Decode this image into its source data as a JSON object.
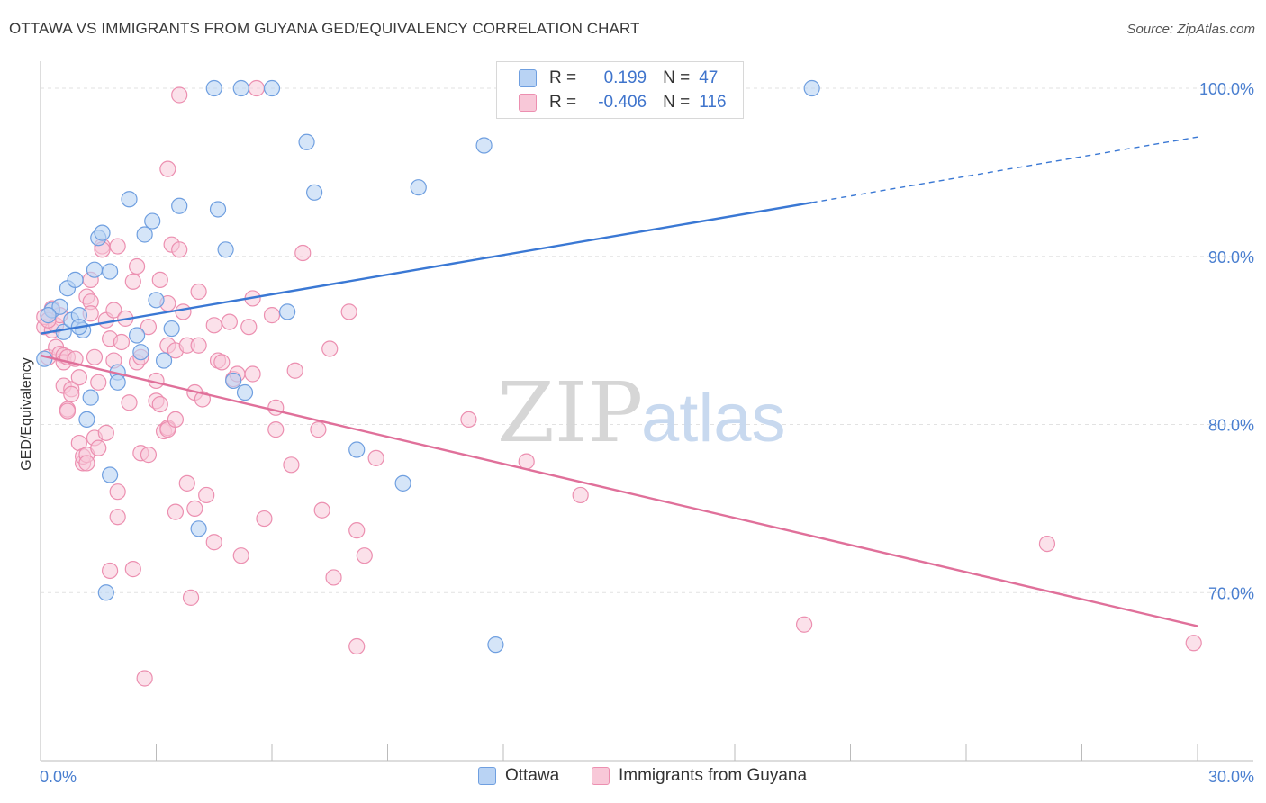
{
  "title": "OTTAWA VS IMMIGRANTS FROM GUYANA GED/EQUIVALENCY CORRELATION CHART",
  "source": "Source: ZipAtlas.com",
  "watermark": {
    "zip": "ZIP",
    "atlas": "atlas"
  },
  "legend": {
    "r_label": "R =",
    "n_label": "N =",
    "rows": [
      {
        "name": "Ottawa",
        "r": "0.199",
        "n": "47"
      },
      {
        "name": "Immigrants from Guyana",
        "r": "-0.406",
        "n": "116"
      }
    ]
  },
  "colors": {
    "ottawa_fill": "#b9d3f4",
    "ottawa_stroke": "#6f9fe0",
    "ottawa_line": "#3a78d4",
    "guyana_fill": "#f8c8d8",
    "guyana_stroke": "#ec8fb0",
    "guyana_line": "#e0709a",
    "grid": "#e2e2e2",
    "tick_text": "#4a7fd0"
  },
  "chart_data": {
    "type": "scatter",
    "title": "OTTAWA VS IMMIGRANTS FROM GUYANA GED/EQUIVALENCY CORRELATION CHART",
    "xlabel": "",
    "ylabel": "GED/Equivalency",
    "xlim": [
      0,
      30
    ],
    "ylim": [
      60,
      101.5
    ],
    "x_tick_labels": [
      "0.0%",
      "30.0%"
    ],
    "y_ticks": [
      70,
      80,
      90,
      100
    ],
    "y_tick_labels": [
      "70.0%",
      "80.0%",
      "90.0%",
      "100.0%"
    ],
    "grid": true,
    "series": [
      {
        "name": "Ottawa",
        "r": 0.199,
        "n": 47,
        "trend": {
          "x0": 0,
          "y0": 85.4,
          "x1": 20,
          "y1": 93.2,
          "dash_to_x": 30,
          "dash_to_y": 97.1
        },
        "points": [
          [
            0.1,
            83.9
          ],
          [
            0.3,
            86.8
          ],
          [
            0.5,
            87.0
          ],
          [
            0.6,
            85.5
          ],
          [
            0.7,
            88.1
          ],
          [
            0.8,
            86.2
          ],
          [
            0.9,
            88.6
          ],
          [
            1.0,
            86.5
          ],
          [
            1.1,
            85.6
          ],
          [
            1.2,
            80.3
          ],
          [
            1.3,
            81.6
          ],
          [
            1.4,
            89.2
          ],
          [
            1.5,
            91.1
          ],
          [
            1.6,
            91.4
          ],
          [
            1.8,
            89.1
          ],
          [
            1.8,
            77.0
          ],
          [
            1.7,
            70.0
          ],
          [
            2.0,
            83.1
          ],
          [
            2.0,
            82.5
          ],
          [
            2.3,
            93.4
          ],
          [
            2.5,
            85.3
          ],
          [
            2.6,
            84.3
          ],
          [
            2.7,
            91.3
          ],
          [
            2.9,
            92.1
          ],
          [
            3.0,
            87.4
          ],
          [
            3.2,
            83.8
          ],
          [
            3.4,
            85.7
          ],
          [
            3.6,
            93.0
          ],
          [
            4.1,
            73.8
          ],
          [
            4.5,
            100.0
          ],
          [
            4.6,
            92.8
          ],
          [
            4.8,
            90.4
          ],
          [
            5.0,
            82.6
          ],
          [
            5.3,
            81.9
          ],
          [
            5.2,
            100.0
          ],
          [
            6.0,
            100.0
          ],
          [
            6.4,
            86.7
          ],
          [
            6.9,
            96.8
          ],
          [
            7.1,
            93.8
          ],
          [
            8.2,
            78.5
          ],
          [
            9.4,
            76.5
          ],
          [
            9.8,
            94.1
          ],
          [
            11.5,
            96.6
          ],
          [
            11.8,
            66.9
          ],
          [
            20.0,
            100.0
          ],
          [
            0.2,
            86.5
          ],
          [
            1.0,
            85.8
          ]
        ]
      },
      {
        "name": "Immigrants from Guyana",
        "r": -0.406,
        "n": 116,
        "trend": {
          "x0": 0,
          "y0": 84.1,
          "x1": 30,
          "y1": 68.0
        },
        "points": [
          [
            0.1,
            85.8
          ],
          [
            0.1,
            86.4
          ],
          [
            0.2,
            84.0
          ],
          [
            0.3,
            86.9
          ],
          [
            0.3,
            85.6
          ],
          [
            0.4,
            85.9
          ],
          [
            0.4,
            84.6
          ],
          [
            0.5,
            86.5
          ],
          [
            0.5,
            84.2
          ],
          [
            0.6,
            84.1
          ],
          [
            0.6,
            82.3
          ],
          [
            0.6,
            83.7
          ],
          [
            0.7,
            84.0
          ],
          [
            0.7,
            80.9
          ],
          [
            0.7,
            80.8
          ],
          [
            0.8,
            82.1
          ],
          [
            0.8,
            81.8
          ],
          [
            0.9,
            83.9
          ],
          [
            1.0,
            78.9
          ],
          [
            1.0,
            82.8
          ],
          [
            1.1,
            77.7
          ],
          [
            1.1,
            78.1
          ],
          [
            1.2,
            78.2
          ],
          [
            1.2,
            87.6
          ],
          [
            1.2,
            77.7
          ],
          [
            1.3,
            87.3
          ],
          [
            1.3,
            88.6
          ],
          [
            1.3,
            86.6
          ],
          [
            1.4,
            84.0
          ],
          [
            1.4,
            79.2
          ],
          [
            1.5,
            82.5
          ],
          [
            1.5,
            78.6
          ],
          [
            1.6,
            90.6
          ],
          [
            1.6,
            90.4
          ],
          [
            1.7,
            86.2
          ],
          [
            1.7,
            79.5
          ],
          [
            1.8,
            85.1
          ],
          [
            1.8,
            71.3
          ],
          [
            1.9,
            86.8
          ],
          [
            1.9,
            83.8
          ],
          [
            2.0,
            90.6
          ],
          [
            2.0,
            74.5
          ],
          [
            2.0,
            76.0
          ],
          [
            2.1,
            84.9
          ],
          [
            2.2,
            86.3
          ],
          [
            2.3,
            81.3
          ],
          [
            2.4,
            88.5
          ],
          [
            2.4,
            71.4
          ],
          [
            2.5,
            89.4
          ],
          [
            2.5,
            83.7
          ],
          [
            2.6,
            78.3
          ],
          [
            2.6,
            84.0
          ],
          [
            2.7,
            64.9
          ],
          [
            2.8,
            85.8
          ],
          [
            2.8,
            78.2
          ],
          [
            3.0,
            81.4
          ],
          [
            3.0,
            82.6
          ],
          [
            3.1,
            88.6
          ],
          [
            3.1,
            81.2
          ],
          [
            3.2,
            79.6
          ],
          [
            3.3,
            79.8
          ],
          [
            3.3,
            87.2
          ],
          [
            3.3,
            84.7
          ],
          [
            3.3,
            79.7
          ],
          [
            3.3,
            95.2
          ],
          [
            3.4,
            90.7
          ],
          [
            3.5,
            80.3
          ],
          [
            3.5,
            84.4
          ],
          [
            3.5,
            74.8
          ],
          [
            3.6,
            90.4
          ],
          [
            3.7,
            86.7
          ],
          [
            3.8,
            84.7
          ],
          [
            3.8,
            76.5
          ],
          [
            3.9,
            69.7
          ],
          [
            4.0,
            81.9
          ],
          [
            4.0,
            75.0
          ],
          [
            4.1,
            87.9
          ],
          [
            4.1,
            84.7
          ],
          [
            4.2,
            81.5
          ],
          [
            4.3,
            75.8
          ],
          [
            3.6,
            99.6
          ],
          [
            4.5,
            85.9
          ],
          [
            4.5,
            73.0
          ],
          [
            4.6,
            83.8
          ],
          [
            4.7,
            83.7
          ],
          [
            4.9,
            86.1
          ],
          [
            5.0,
            82.7
          ],
          [
            5.1,
            83.0
          ],
          [
            5.2,
            72.2
          ],
          [
            5.4,
            85.8
          ],
          [
            5.5,
            87.5
          ],
          [
            5.5,
            83.0
          ],
          [
            5.6,
            100.0
          ],
          [
            5.8,
            74.4
          ],
          [
            6.0,
            86.5
          ],
          [
            6.1,
            79.7
          ],
          [
            6.1,
            81.0
          ],
          [
            6.5,
            77.6
          ],
          [
            6.6,
            83.2
          ],
          [
            6.8,
            90.2
          ],
          [
            7.2,
            79.7
          ],
          [
            7.3,
            74.9
          ],
          [
            7.5,
            84.5
          ],
          [
            7.6,
            70.9
          ],
          [
            8.0,
            86.7
          ],
          [
            8.2,
            73.7
          ],
          [
            8.2,
            66.8
          ],
          [
            8.4,
            72.2
          ],
          [
            8.7,
            78.0
          ],
          [
            11.1,
            80.3
          ],
          [
            12.6,
            77.8
          ],
          [
            14.0,
            75.8
          ],
          [
            19.8,
            68.1
          ],
          [
            26.1,
            72.9
          ],
          [
            29.9,
            67.0
          ],
          [
            0.2,
            86.2
          ]
        ]
      }
    ]
  }
}
